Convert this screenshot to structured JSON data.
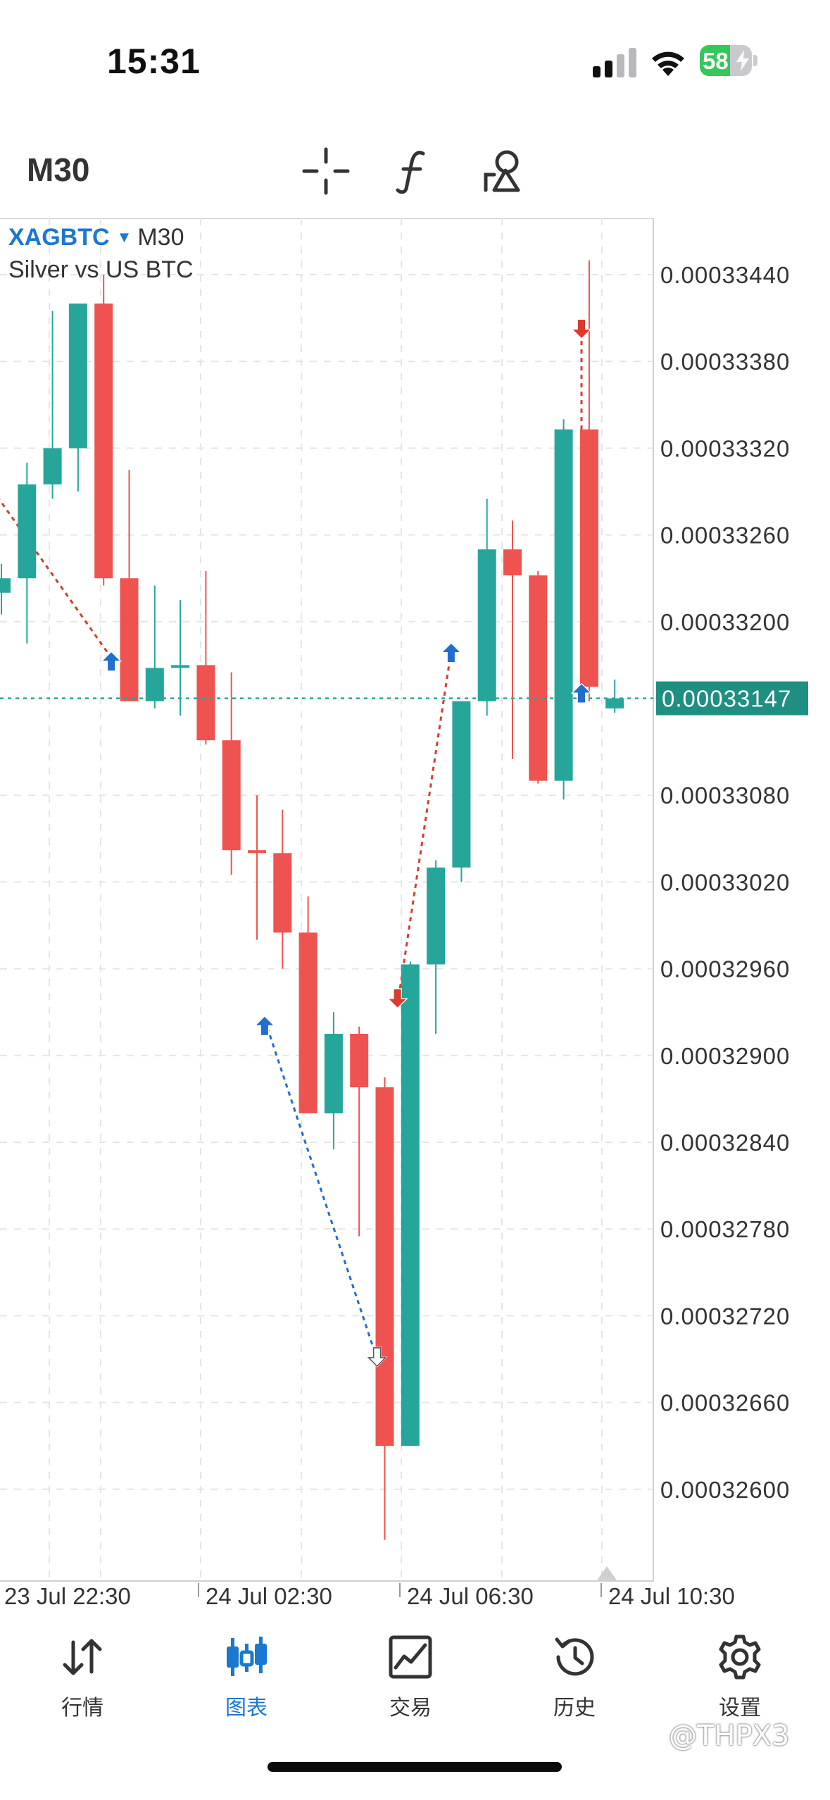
{
  "status": {
    "time": "15:31",
    "battery_percent": 58,
    "battery_label": "58"
  },
  "toolbar": {
    "timeframe": "M30",
    "icons": [
      "crosshair-icon",
      "function-icon",
      "objects-icon"
    ]
  },
  "chart": {
    "symbol": "XAGBTC",
    "timeframe": "M30",
    "description": "Silver vs US BTC",
    "current_price": "0.00033147",
    "colors": {
      "bull": "#26a69a",
      "bear": "#ef5350",
      "accent": "#1b78d0",
      "price_line": "#26a69a",
      "price_tag_bg": "#1e8f80"
    }
  },
  "chart_data": {
    "type": "candlestick",
    "price_axis_labels": [
      "0.00033440",
      "0.00033380",
      "0.00033320",
      "0.00033260",
      "0.00033200",
      "0.00033080",
      "0.00033020",
      "0.00032960",
      "0.00032900",
      "0.00032840",
      "0.00032780",
      "0.00032720",
      "0.00032660",
      "0.00032600"
    ],
    "ylim": [
      0.0003254,
      0.0003347
    ],
    "time_axis_labels": [
      "23 Jul 22:30",
      "24 Jul 02:30",
      "24 Jul 06:30",
      "24 Jul 10:30"
    ],
    "last_price": 0.00033147,
    "candles": [
      {
        "o": 0.0003322,
        "h": 0.0003324,
        "l": 0.00033205,
        "c": 0.0003323
      },
      {
        "o": 0.0003323,
        "h": 0.0003331,
        "l": 0.00033185,
        "c": 0.00033295
      },
      {
        "o": 0.00033295,
        "h": 0.00033415,
        "l": 0.00033285,
        "c": 0.0003332
      },
      {
        "o": 0.0003332,
        "h": 0.0003342,
        "l": 0.0003329,
        "c": 0.0003342
      },
      {
        "o": 0.0003342,
        "h": 0.0003344,
        "l": 0.00033225,
        "c": 0.0003323
      },
      {
        "o": 0.0003323,
        "h": 0.00033305,
        "l": 0.00033145,
        "c": 0.00033145
      },
      {
        "o": 0.00033145,
        "h": 0.00033225,
        "l": 0.0003314,
        "c": 0.00033168
      },
      {
        "o": 0.00033168,
        "h": 0.00033215,
        "l": 0.00033135,
        "c": 0.0003317
      },
      {
        "o": 0.0003317,
        "h": 0.00033235,
        "l": 0.00033115,
        "c": 0.00033118
      },
      {
        "o": 0.00033118,
        "h": 0.00033165,
        "l": 0.00033025,
        "c": 0.00033042
      },
      {
        "o": 0.00033042,
        "h": 0.0003308,
        "l": 0.0003298,
        "c": 0.0003304
      },
      {
        "o": 0.0003304,
        "h": 0.0003307,
        "l": 0.0003296,
        "c": 0.00032985
      },
      {
        "o": 0.00032985,
        "h": 0.0003301,
        "l": 0.0003286,
        "c": 0.0003286
      },
      {
        "o": 0.0003286,
        "h": 0.0003293,
        "l": 0.00032835,
        "c": 0.00032915
      },
      {
        "o": 0.00032915,
        "h": 0.0003292,
        "l": 0.00032775,
        "c": 0.00032878
      },
      {
        "o": 0.00032878,
        "h": 0.00032885,
        "l": 0.00032565,
        "c": 0.0003263
      },
      {
        "o": 0.0003263,
        "h": 0.00032965,
        "l": 0.0003263,
        "c": 0.00032963
      },
      {
        "o": 0.00032963,
        "h": 0.00033035,
        "l": 0.00032915,
        "c": 0.0003303
      },
      {
        "o": 0.0003303,
        "h": 0.00033145,
        "l": 0.0003302,
        "c": 0.00033145
      },
      {
        "o": 0.00033145,
        "h": 0.00033285,
        "l": 0.00033135,
        "c": 0.0003325
      },
      {
        "o": 0.0003325,
        "h": 0.0003327,
        "l": 0.00033105,
        "c": 0.00033232
      },
      {
        "o": 0.00033232,
        "h": 0.00033235,
        "l": 0.00033088,
        "c": 0.0003309
      },
      {
        "o": 0.0003309,
        "h": 0.0003334,
        "l": 0.00033077,
        "c": 0.00033333
      },
      {
        "o": 0.00033333,
        "h": 0.0003345,
        "l": 0.00033145,
        "c": 0.00033155
      },
      {
        "o": 0.0003314,
        "h": 0.0003316,
        "l": 0.00033137,
        "c": 0.00033147
      }
    ],
    "trades": [
      {
        "from_candle": -1.5,
        "from_price": 0.0003332,
        "to_candle": 4.3,
        "to_price": 0.00033175,
        "color": "red"
      },
      {
        "from_candle": 10.3,
        "from_price": 0.00032925,
        "to_candle": 14.7,
        "to_price": 0.0003269,
        "color": "blue"
      },
      {
        "from_candle": 15.5,
        "from_price": 0.00032935,
        "to_candle": 17.6,
        "to_price": 0.0003318,
        "color": "red"
      },
      {
        "from_candle": 22.7,
        "from_price": 0.000334,
        "to_candle": 22.7,
        "to_price": 0.0003315,
        "color": "red"
      }
    ],
    "arrows": [
      {
        "candle": 4.3,
        "price": 0.00033172,
        "dir": "up",
        "color": "blue"
      },
      {
        "candle": 10.3,
        "price": 0.0003292,
        "dir": "up",
        "color": "blue"
      },
      {
        "candle": 14.7,
        "price": 0.00032692,
        "dir": "down",
        "color": "white"
      },
      {
        "candle": 15.5,
        "price": 0.0003294,
        "dir": "down",
        "color": "red"
      },
      {
        "candle": 17.6,
        "price": 0.00033178,
        "dir": "up",
        "color": "blue"
      },
      {
        "candle": 22.7,
        "price": 0.00033403,
        "dir": "down",
        "color": "red"
      },
      {
        "candle": 22.7,
        "price": 0.0003315,
        "dir": "up",
        "color": "blue"
      }
    ],
    "grid": true
  },
  "tabs": [
    {
      "label": "行情",
      "icon": "quotes-icon",
      "active": false
    },
    {
      "label": "图表",
      "icon": "chart-icon",
      "active": true
    },
    {
      "label": "交易",
      "icon": "trade-icon",
      "active": false
    },
    {
      "label": "历史",
      "icon": "history-icon",
      "active": false
    },
    {
      "label": "设置",
      "icon": "settings-icon",
      "active": false
    }
  ],
  "watermark": "@THPX3"
}
